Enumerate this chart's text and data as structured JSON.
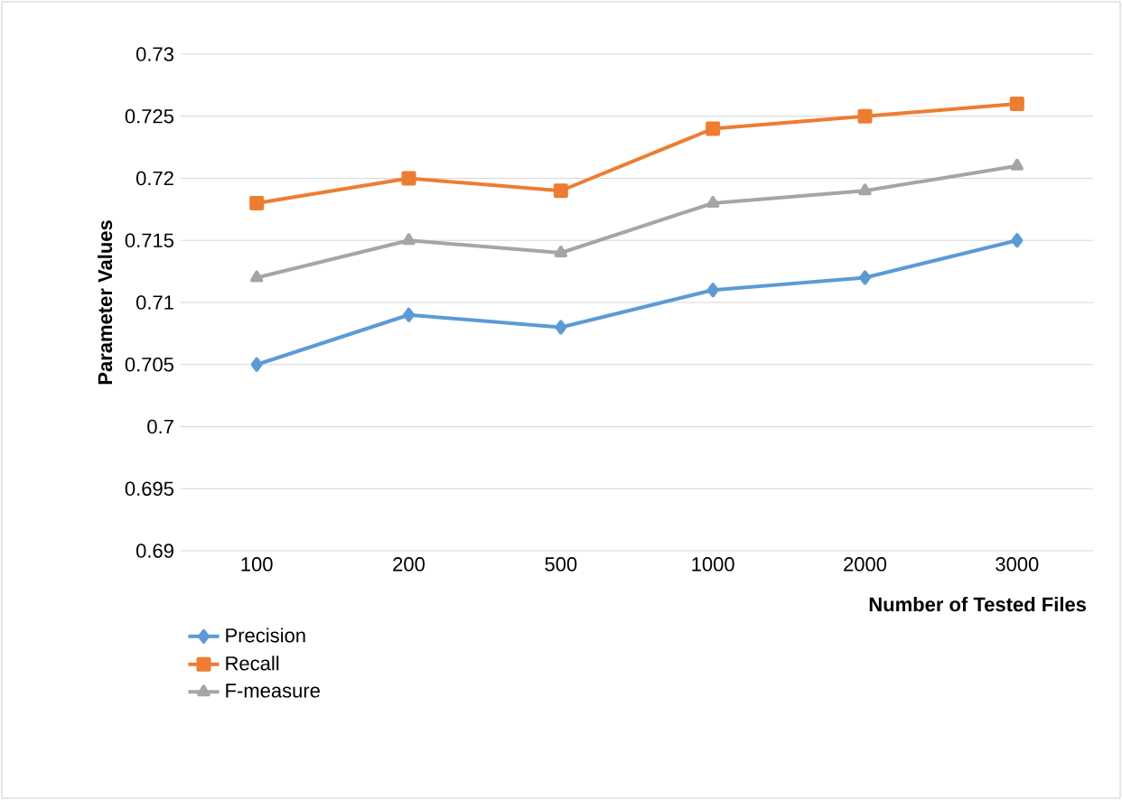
{
  "chart_data": {
    "type": "line",
    "xlabel": "Number of Tested Files",
    "ylabel": "Parameter Values",
    "categories": [
      "100",
      "200",
      "500",
      "1000",
      "2000",
      "3000"
    ],
    "series": [
      {
        "name": "Precision",
        "color": "#5b9bd5",
        "marker": "diamond",
        "values": [
          0.705,
          0.709,
          0.708,
          0.711,
          0.712,
          0.715
        ]
      },
      {
        "name": "Recall",
        "color": "#ed7d31",
        "marker": "square",
        "values": [
          0.718,
          0.72,
          0.719,
          0.724,
          0.725,
          0.726
        ]
      },
      {
        "name": "F-measure",
        "color": "#a5a5a5",
        "marker": "triangle",
        "values": [
          0.712,
          0.715,
          0.714,
          0.718,
          0.719,
          0.721
        ]
      }
    ],
    "ylim": [
      0.69,
      0.73
    ],
    "yticks": [
      0.69,
      0.695,
      0.7,
      0.705,
      0.71,
      0.715,
      0.72,
      0.725,
      0.73
    ],
    "grid": "y",
    "legend": "bottom left",
    "line_style": "solid"
  }
}
